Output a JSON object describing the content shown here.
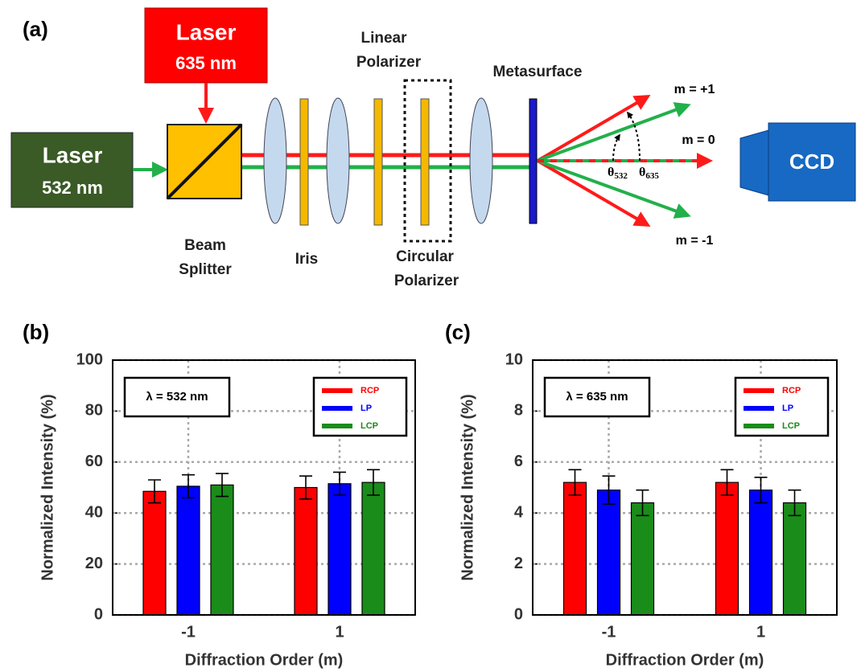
{
  "diagram": {
    "panel_label": "(a)",
    "red_laser": [
      "Laser",
      "635 nm"
    ],
    "green_laser": [
      "Laser",
      "532 nm"
    ],
    "beam_splitter": [
      "Beam",
      "Splitter"
    ],
    "iris": "Iris",
    "linear_polarizer": [
      "Linear",
      "Polarizer"
    ],
    "circular_polarizer": [
      "Circular",
      "Polarizer"
    ],
    "metasurface": "Metasurface",
    "orders": [
      "m = +1",
      "m = 0",
      "m = -1"
    ],
    "angles": [
      {
        "symbol": "θ",
        "subscript": "532"
      },
      {
        "symbol": "θ",
        "subscript": "635"
      }
    ],
    "detector": "CCD"
  },
  "chart_data": [
    {
      "type": "bar",
      "panel_label": "(b)",
      "annotation": "λ = 532 nm",
      "x_label": "Diffraction Order (m)",
      "y_label": "Normalized Intensity (%)",
      "categories": [
        "-1",
        "1"
      ],
      "series": [
        {
          "name": "RCP",
          "color": "#ff0000",
          "values": [
            48.5,
            50
          ],
          "errors": [
            4.5,
            4.5
          ]
        },
        {
          "name": "LP",
          "color": "#0000ff",
          "values": [
            50.5,
            51.5
          ],
          "errors": [
            4.5,
            4.5
          ]
        },
        {
          "name": "LCP",
          "color": "#1a8c1a",
          "values": [
            51,
            52
          ],
          "errors": [
            4.5,
            5
          ]
        }
      ],
      "ylim": [
        0,
        100
      ],
      "yticks": [
        0,
        20,
        40,
        60,
        80,
        100
      ],
      "grid": true,
      "legend": "upper right"
    },
    {
      "type": "bar",
      "panel_label": "(c)",
      "annotation": "λ = 635 nm",
      "x_label": "Diffraction Order (m)",
      "y_label": "Normalized Intensity (%)",
      "categories": [
        "-1",
        "1"
      ],
      "series": [
        {
          "name": "RCP",
          "color": "#ff0000",
          "values": [
            5.2,
            5.2
          ],
          "errors": [
            0.5,
            0.5
          ]
        },
        {
          "name": "LP",
          "color": "#0000ff",
          "values": [
            4.9,
            4.9
          ],
          "errors": [
            0.55,
            0.5
          ]
        },
        {
          "name": "LCP",
          "color": "#1a8c1a",
          "values": [
            4.4,
            4.4
          ],
          "errors": [
            0.5,
            0.5
          ]
        }
      ],
      "ylim": [
        0,
        10
      ],
      "yticks": [
        0,
        2,
        4,
        6,
        8,
        10
      ],
      "grid": true,
      "legend": "upper right"
    }
  ]
}
